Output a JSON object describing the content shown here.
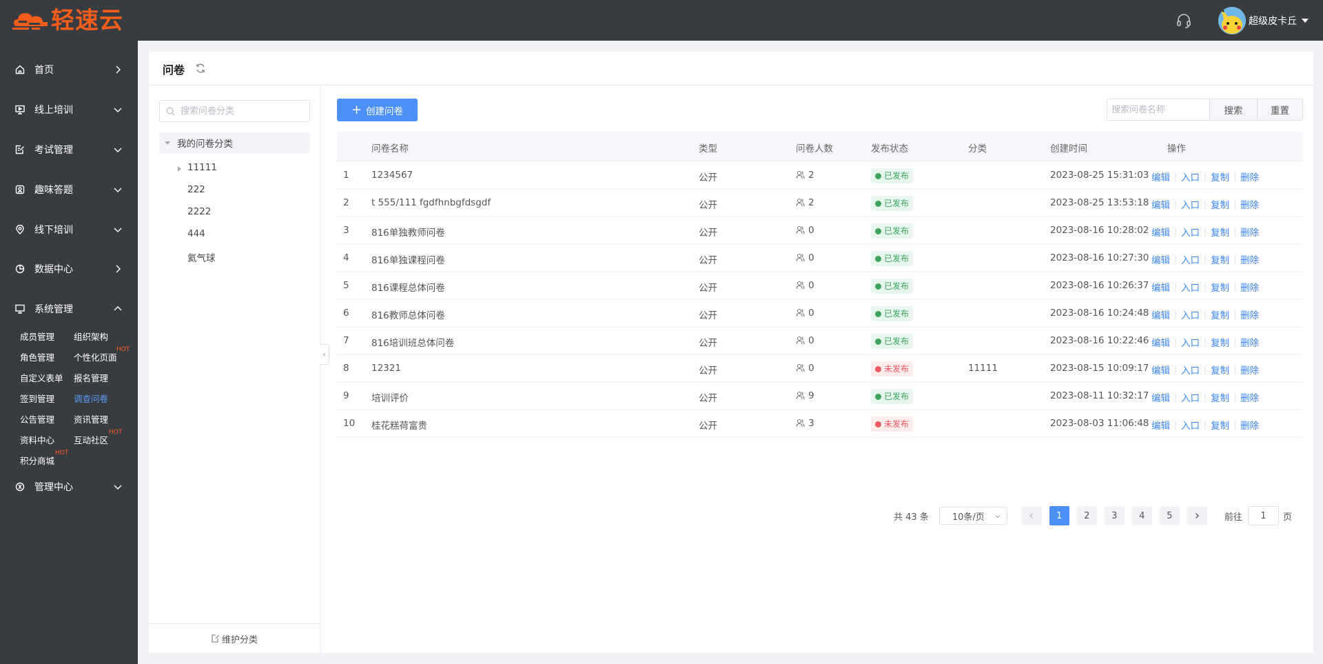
{
  "app": {
    "logo_text": "轻速云",
    "brand_color": "#f25d1b",
    "accent_color": "#4a90f5"
  },
  "header": {
    "username": "超级皮卡丘",
    "support_icon": "headset-icon"
  },
  "sidebar": {
    "items": [
      {
        "label": "首页",
        "icon": "home-icon",
        "arrow": "right"
      },
      {
        "label": "线上培训",
        "icon": "monitor-training-icon",
        "arrow": "down"
      },
      {
        "label": "考试管理",
        "icon": "exam-icon",
        "arrow": "down"
      },
      {
        "label": "趣味答题",
        "icon": "quiz-icon",
        "arrow": "down"
      },
      {
        "label": "线下培训",
        "icon": "location-icon",
        "arrow": "down"
      },
      {
        "label": "数据中心",
        "icon": "pie-chart-icon",
        "arrow": "right"
      },
      {
        "label": "系统管理",
        "icon": "desktop-icon",
        "arrow": "up"
      },
      {
        "label": "管理中心",
        "icon": "admin-icon",
        "arrow": "down"
      }
    ],
    "subitems": [
      {
        "label": "成员管理"
      },
      {
        "label": "组织架构"
      },
      {
        "label": "角色管理"
      },
      {
        "label": "个性化页面",
        "badge": "HOT"
      },
      {
        "label": "自定义表单"
      },
      {
        "label": "报名管理"
      },
      {
        "label": "签到管理"
      },
      {
        "label": "调查问卷",
        "active": true
      },
      {
        "label": "公告管理"
      },
      {
        "label": "资讯管理"
      },
      {
        "label": "资料中心"
      },
      {
        "label": "互动社区",
        "badge": "HOT"
      },
      {
        "label": "积分商城",
        "badge": "HOT"
      }
    ]
  },
  "page": {
    "title": "问卷"
  },
  "categories": {
    "search_placeholder": "搜索问卷分类",
    "root": "我的问卷分类",
    "nodes": [
      "11111",
      "222",
      "2222",
      "444",
      "氦气球"
    ],
    "maintain_label": "维护分类"
  },
  "toolbar": {
    "create_label": "创建问卷",
    "search_placeholder": "搜索问卷名称",
    "search_label": "搜索",
    "reset_label": "重置"
  },
  "table": {
    "headers": [
      "问卷名称",
      "类型",
      "问卷人数",
      "发布状态",
      "分类",
      "创建时间",
      "操作"
    ],
    "rows": [
      {
        "no": "1",
        "name": "1234567",
        "type": "公开",
        "count": "2",
        "status": "已发布",
        "published": true,
        "category": "",
        "created": "2023-08-25 15:31:03"
      },
      {
        "no": "2",
        "name": "t 555/111 fgdfhnbgfdsgdf",
        "type": "公开",
        "count": "2",
        "status": "已发布",
        "published": true,
        "category": "",
        "created": "2023-08-25 13:53:18"
      },
      {
        "no": "3",
        "name": "816单独教师问卷",
        "type": "公开",
        "count": "0",
        "status": "已发布",
        "published": true,
        "category": "",
        "created": "2023-08-16 10:28:02"
      },
      {
        "no": "4",
        "name": "816单独课程问卷",
        "type": "公开",
        "count": "0",
        "status": "已发布",
        "published": true,
        "category": "",
        "created": "2023-08-16 10:27:30"
      },
      {
        "no": "5",
        "name": "816课程总体问卷",
        "type": "公开",
        "count": "0",
        "status": "已发布",
        "published": true,
        "category": "",
        "created": "2023-08-16 10:26:37"
      },
      {
        "no": "6",
        "name": "816教师总体问卷",
        "type": "公开",
        "count": "0",
        "status": "已发布",
        "published": true,
        "category": "",
        "created": "2023-08-16 10:24:48"
      },
      {
        "no": "7",
        "name": "816培训班总体问卷",
        "type": "公开",
        "count": "0",
        "status": "已发布",
        "published": true,
        "category": "",
        "created": "2023-08-16 10:22:46"
      },
      {
        "no": "8",
        "name": "12321",
        "type": "公开",
        "count": "0",
        "status": "未发布",
        "published": false,
        "category": "11111",
        "created": "2023-08-15 10:09:17"
      },
      {
        "no": "9",
        "name": "培训评价",
        "type": "公开",
        "count": "9",
        "status": "已发布",
        "published": true,
        "category": "",
        "created": "2023-08-11 10:32:17"
      },
      {
        "no": "10",
        "name": "桂花糕荷富贵",
        "type": "公开",
        "count": "3",
        "status": "未发布",
        "published": false,
        "category": "",
        "created": "2023-08-03 11:06:48"
      }
    ],
    "actions": [
      "编辑",
      "入口",
      "复制",
      "删除"
    ]
  },
  "pagination": {
    "total": "共 43 条",
    "page_size": "10条/页",
    "pages": [
      "1",
      "2",
      "3",
      "4",
      "5"
    ],
    "current": "1",
    "goto_label": "前往",
    "goto_value": "1",
    "goto_suffix": "页"
  }
}
